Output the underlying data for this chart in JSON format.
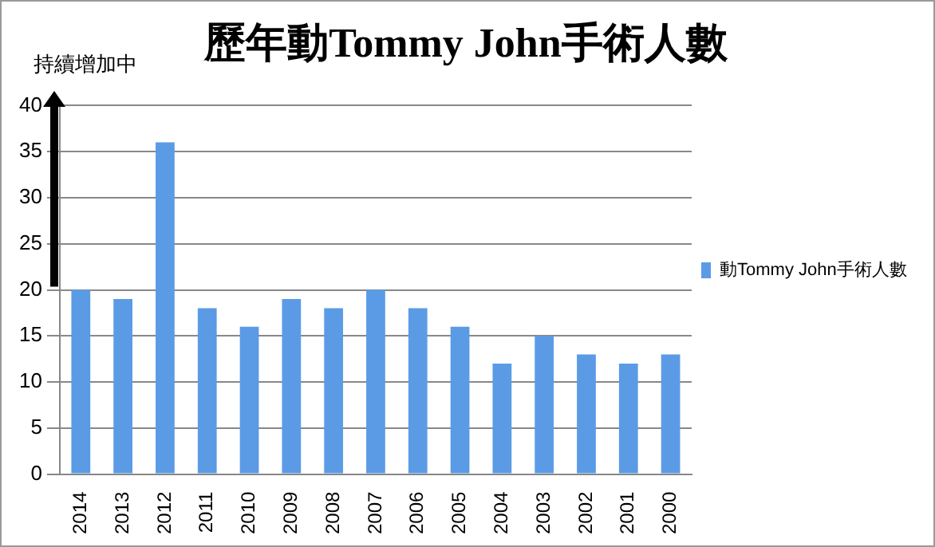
{
  "chart_data": {
    "type": "bar",
    "title": "歷年動Tommy John手術人數",
    "categories": [
      "2014",
      "2013",
      "2012",
      "2011",
      "2010",
      "2009",
      "2008",
      "2007",
      "2006",
      "2005",
      "2004",
      "2003",
      "2002",
      "2001",
      "2000"
    ],
    "series": [
      {
        "name": "動Tommy John手術人數",
        "color": "#5b9be6",
        "values": [
          20,
          19,
          36,
          18,
          16,
          19,
          18,
          20,
          18,
          16,
          12,
          15,
          13,
          12,
          13
        ]
      }
    ],
    "ylim": [
      0,
      40
    ],
    "yticks": [
      0,
      5,
      10,
      15,
      20,
      25,
      30,
      35,
      40
    ],
    "grid": "y",
    "legend": "right",
    "annotations": [
      "持續增加中"
    ]
  }
}
